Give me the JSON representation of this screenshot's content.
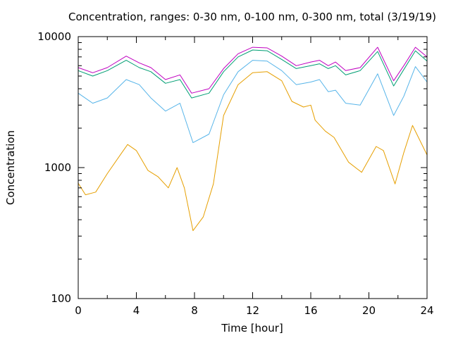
{
  "chart_data": {
    "type": "line",
    "title": "Concentration, ranges: 0-30 nm, 0-100 nm, 0-300 nm, total (3/19/19)",
    "xlabel": "Time [hour]",
    "ylabel": "Concentration",
    "xlim": [
      0,
      24
    ],
    "ylim": [
      100,
      10000
    ],
    "yscale": "log",
    "grid": false,
    "x_ticks": [
      0,
      4,
      8,
      12,
      16,
      20,
      24
    ],
    "x_tick_labels": [
      "0",
      "4",
      "8",
      "12",
      "16",
      "20",
      "24"
    ],
    "y_ticks": [
      100,
      1000,
      10000
    ],
    "y_tick_labels": [
      "100",
      "1000",
      "10000"
    ],
    "series": [
      {
        "color": "#c000c0",
        "points": [
          [
            0,
            5800
          ],
          [
            1,
            5300
          ],
          [
            2,
            5800
          ],
          [
            3.3,
            7100
          ],
          [
            4.2,
            6300
          ],
          [
            5,
            5800
          ],
          [
            6,
            4700
          ],
          [
            7,
            5100
          ],
          [
            7.8,
            3700
          ],
          [
            9,
            4000
          ],
          [
            10,
            5700
          ],
          [
            11,
            7400
          ],
          [
            12,
            8300
          ],
          [
            13,
            8200
          ],
          [
            14,
            7100
          ],
          [
            15,
            6000
          ],
          [
            16,
            6400
          ],
          [
            16.6,
            6600
          ],
          [
            17.2,
            6000
          ],
          [
            17.7,
            6400
          ],
          [
            18.4,
            5500
          ],
          [
            19.4,
            5800
          ],
          [
            20.6,
            8300
          ],
          [
            21.7,
            4600
          ],
          [
            22.4,
            6000
          ],
          [
            23.2,
            8300
          ],
          [
            24,
            7000
          ]
        ]
      },
      {
        "color": "#009e73",
        "points": [
          [
            0,
            5500
          ],
          [
            1,
            5000
          ],
          [
            2,
            5500
          ],
          [
            3.3,
            6600
          ],
          [
            4.2,
            5800
          ],
          [
            5,
            5400
          ],
          [
            6,
            4400
          ],
          [
            7,
            4700
          ],
          [
            7.8,
            3400
          ],
          [
            9,
            3700
          ],
          [
            10,
            5400
          ],
          [
            11,
            7000
          ],
          [
            12,
            7900
          ],
          [
            13,
            7800
          ],
          [
            14,
            6700
          ],
          [
            15,
            5700
          ],
          [
            16,
            6000
          ],
          [
            16.6,
            6200
          ],
          [
            17.2,
            5700
          ],
          [
            17.7,
            6000
          ],
          [
            18.4,
            5100
          ],
          [
            19.4,
            5500
          ],
          [
            20.6,
            7700
          ],
          [
            21.7,
            4200
          ],
          [
            22.4,
            5600
          ],
          [
            23.2,
            7800
          ],
          [
            24,
            6500
          ]
        ]
      },
      {
        "color": "#56b4e9",
        "points": [
          [
            0,
            3700
          ],
          [
            1,
            3100
          ],
          [
            2,
            3400
          ],
          [
            3.3,
            4700
          ],
          [
            4.2,
            4300
          ],
          [
            5,
            3400
          ],
          [
            6,
            2700
          ],
          [
            7,
            3100
          ],
          [
            7.9,
            1550
          ],
          [
            9,
            1800
          ],
          [
            10,
            3600
          ],
          [
            11,
            5400
          ],
          [
            12,
            6600
          ],
          [
            13,
            6500
          ],
          [
            14,
            5500
          ],
          [
            15,
            4300
          ],
          [
            16,
            4500
          ],
          [
            16.6,
            4700
          ],
          [
            17.2,
            3800
          ],
          [
            17.7,
            3900
          ],
          [
            18.4,
            3100
          ],
          [
            19.4,
            3000
          ],
          [
            20.6,
            5200
          ],
          [
            21.7,
            2500
          ],
          [
            22.4,
            3500
          ],
          [
            23.2,
            5900
          ],
          [
            24,
            4500
          ]
        ]
      },
      {
        "color": "#e69f00",
        "points": [
          [
            0,
            760
          ],
          [
            0.5,
            620
          ],
          [
            1.2,
            650
          ],
          [
            2,
            900
          ],
          [
            3,
            1300
          ],
          [
            3.4,
            1500
          ],
          [
            4,
            1350
          ],
          [
            4.8,
            950
          ],
          [
            5.5,
            850
          ],
          [
            6.2,
            700
          ],
          [
            6.8,
            1000
          ],
          [
            7.3,
            700
          ],
          [
            7.9,
            330
          ],
          [
            8.6,
            420
          ],
          [
            9.3,
            750
          ],
          [
            10,
            2500
          ],
          [
            11,
            4300
          ],
          [
            12,
            5300
          ],
          [
            13,
            5400
          ],
          [
            14,
            4600
          ],
          [
            14.7,
            3200
          ],
          [
            15.5,
            2900
          ],
          [
            16,
            3000
          ],
          [
            16.3,
            2300
          ],
          [
            17,
            1900
          ],
          [
            17.6,
            1700
          ],
          [
            18.6,
            1100
          ],
          [
            19.5,
            920
          ],
          [
            20.5,
            1450
          ],
          [
            21,
            1350
          ],
          [
            21.8,
            750
          ],
          [
            22.4,
            1300
          ],
          [
            23,
            2100
          ],
          [
            24,
            1250
          ]
        ]
      }
    ]
  }
}
